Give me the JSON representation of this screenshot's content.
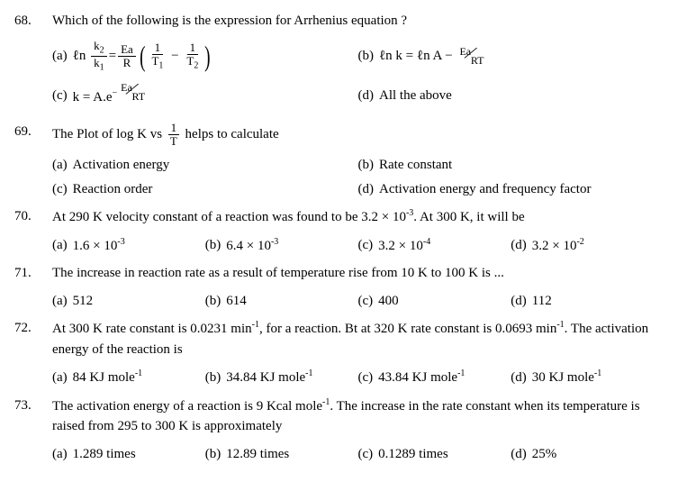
{
  "questions": [
    {
      "num": "68.",
      "text": "Which of the following is the expression for Arrhenius equation ?",
      "option_layout": "eq",
      "options": [
        {
          "label": "(a)",
          "kind": "eq-a"
        },
        {
          "label": "(b)",
          "kind": "eq-b"
        },
        {
          "label": "(c)",
          "kind": "eq-c"
        },
        {
          "label": "(d)",
          "val": "All the above"
        }
      ]
    },
    {
      "num": "69.",
      "text_kind": "q69",
      "text_prefix": "The Plot of log K vs ",
      "text_suffix": " helps to calculate",
      "option_layout": "cols-2",
      "options": [
        {
          "label": "(a)",
          "val": "Activation energy"
        },
        {
          "label": "(b)",
          "val": "Rate constant"
        },
        {
          "label": "(c)",
          "val": "Reaction order"
        },
        {
          "label": "(d)",
          "val": "Activation energy and frequency factor"
        }
      ]
    },
    {
      "num": "70.",
      "text_kind": "q70",
      "text_a": "At 290 K velocity constant of a reaction was found to be 3.2 × 10",
      "text_b": ". At 300 K, it will be",
      "option_layout": "cols-4",
      "options": [
        {
          "label": "(a)",
          "val_a": "1.6 × 10",
          "exp": "-3"
        },
        {
          "label": "(b)",
          "val_a": "6.4 × 10",
          "exp": "-3"
        },
        {
          "label": "(c)",
          "val_a": "3.2 × 10",
          "exp": "-4"
        },
        {
          "label": "(d)",
          "val_a": "3.2 × 10",
          "exp": "-2"
        }
      ]
    },
    {
      "num": "71.",
      "text": "The increase in reaction rate as a result of temperature rise from 10 K to 100 K is ...",
      "option_layout": "cols-4",
      "options": [
        {
          "label": "(a)",
          "val": "512"
        },
        {
          "label": "(b)",
          "val": "614"
        },
        {
          "label": "(c)",
          "val": "400"
        },
        {
          "label": "(d)",
          "val": "112"
        }
      ]
    },
    {
      "num": "72.",
      "text_kind": "q72",
      "t1": "At 300 K rate constant is 0.0231 min",
      "t2": ", for a reaction. Bt at 320 K rate constant is 0.0693 min",
      "t3": ". The activation energy of the reaction is",
      "option_layout": "cols-4",
      "options": [
        {
          "label": "(a)",
          "val_a": "84 KJ mole",
          "exp": "-1"
        },
        {
          "label": "(b)",
          "val_a": "34.84 KJ mole",
          "exp": "-1"
        },
        {
          "label": "(c)",
          "val_a": "43.84 KJ mole",
          "exp": "-1"
        },
        {
          "label": "(d)",
          "val_a": "30 KJ mole",
          "exp": "-1"
        }
      ]
    },
    {
      "num": "73.",
      "text_kind": "q73",
      "t1": "The activation energy of a reaction is 9 Kcal mole",
      "t2": ". The increase in the rate constant when its temperature is raised from 295 to 300 K is approximately",
      "option_layout": "cols-4",
      "options": [
        {
          "label": "(a)",
          "val": "1.289 times"
        },
        {
          "label": "(b)",
          "val": "12.89 times"
        },
        {
          "label": "(c)",
          "val": "0.1289 times"
        },
        {
          "label": "(d)",
          "val": "25%"
        }
      ]
    }
  ],
  "eq": {
    "a": {
      "ln": "ℓn",
      "k2": "k",
      "k2sub": "2",
      "k1": "k",
      "k1sub": "1",
      "eq": "=",
      "Ea": "Ea",
      "R": "R",
      "one": "1",
      "T1": "T",
      "T1sub": "1",
      "minus": "−",
      "T2": "T",
      "T2sub": "2"
    },
    "b": {
      "txt1": "ℓn k = ℓn A − ",
      "Ea": "Ea",
      "RT": "RT"
    },
    "c": {
      "txt1": "k = A.e",
      "minus": "−",
      "Ea": "Ea",
      "RT": "RT"
    }
  },
  "frac_1T": {
    "num": "1",
    "den": "T"
  },
  "exp_neg3": "-3",
  "exp_neg1": "-1"
}
